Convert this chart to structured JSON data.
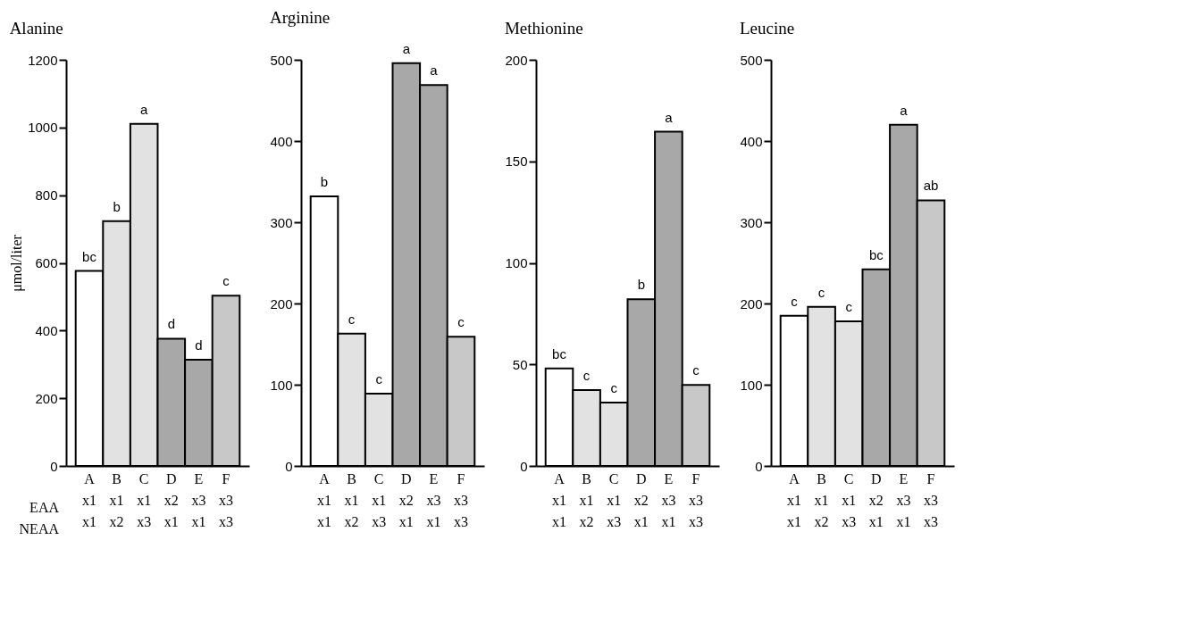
{
  "chart_data": [
    {
      "type": "bar",
      "title": "Alanine",
      "ylabel": "μmol/liter",
      "categories": [
        "A\nx1\nx1",
        "B\nx1\nx2",
        "C\nx1\nx3",
        "D\nx2\nx1",
        "E\nx3\nx1",
        "F\nx3\nx3"
      ],
      "values": [
        576,
        723,
        1011,
        376,
        314,
        503
      ],
      "colors": [
        "#ffffff",
        "#e2e2e2",
        "#e2e2e2",
        "#a8a8a8",
        "#a8a8a8",
        "#c8c8c8"
      ],
      "value_labels": [
        "bc",
        "b",
        "a",
        "d",
        "d",
        "c"
      ],
      "ylim": [
        0,
        1200
      ],
      "yticks": [
        0,
        200,
        400,
        600,
        800,
        1000,
        1200
      ],
      "annotations": [
        "EAA",
        "NEAA"
      ]
    },
    {
      "type": "bar",
      "title": "Arginine",
      "categories": [
        "A\nx1\nx1",
        "B\nx1\nx2",
        "C\nx1\nx3",
        "D\nx2\nx1",
        "E\nx3\nx1",
        "F\nx3\nx3"
      ],
      "values": [
        332,
        163,
        89,
        496,
        469,
        159
      ],
      "colors": [
        "#ffffff",
        "#e2e2e2",
        "#e2e2e2",
        "#a8a8a8",
        "#a8a8a8",
        "#c8c8c8"
      ],
      "value_labels": [
        "b",
        "c",
        "c",
        "a",
        "a",
        "c"
      ],
      "ylim": [
        0,
        500
      ],
      "yticks": [
        0,
        100,
        200,
        300,
        400,
        500
      ]
    },
    {
      "type": "bar",
      "title": "Methionine",
      "categories": [
        "A\nx1\nx1",
        "B\nx1\nx2",
        "C\nx1\nx3",
        "D\nx2\nx1",
        "E\nx3\nx1",
        "F\nx3\nx3"
      ],
      "values": [
        48,
        37.4,
        31.2,
        82.1,
        164.6,
        39.9
      ],
      "colors": [
        "#ffffff",
        "#e2e2e2",
        "#e2e2e2",
        "#a8a8a8",
        "#a8a8a8",
        "#c8c8c8"
      ],
      "value_labels": [
        "bc",
        "c",
        "c",
        "b",
        "a",
        "c"
      ],
      "ylim": [
        0,
        200
      ],
      "yticks": [
        0,
        50,
        100,
        150,
        200
      ]
    },
    {
      "type": "bar",
      "title": "Leucine",
      "categories": [
        "A\nx1\nx1",
        "B\nx1\nx2",
        "C\nx1\nx3",
        "D\nx2\nx1",
        "E\nx3\nx1",
        "F\nx3\nx3"
      ],
      "values": [
        185,
        196,
        178,
        242,
        420,
        327
      ],
      "colors": [
        "#ffffff",
        "#e2e2e2",
        "#e2e2e2",
        "#a8a8a8",
        "#a8a8a8",
        "#c8c8c8"
      ],
      "value_labels": [
        "c",
        "c",
        "c",
        "bc",
        "a",
        "ab"
      ],
      "ylim": [
        0,
        500
      ],
      "yticks": [
        0,
        100,
        200,
        300,
        400,
        500
      ]
    }
  ]
}
